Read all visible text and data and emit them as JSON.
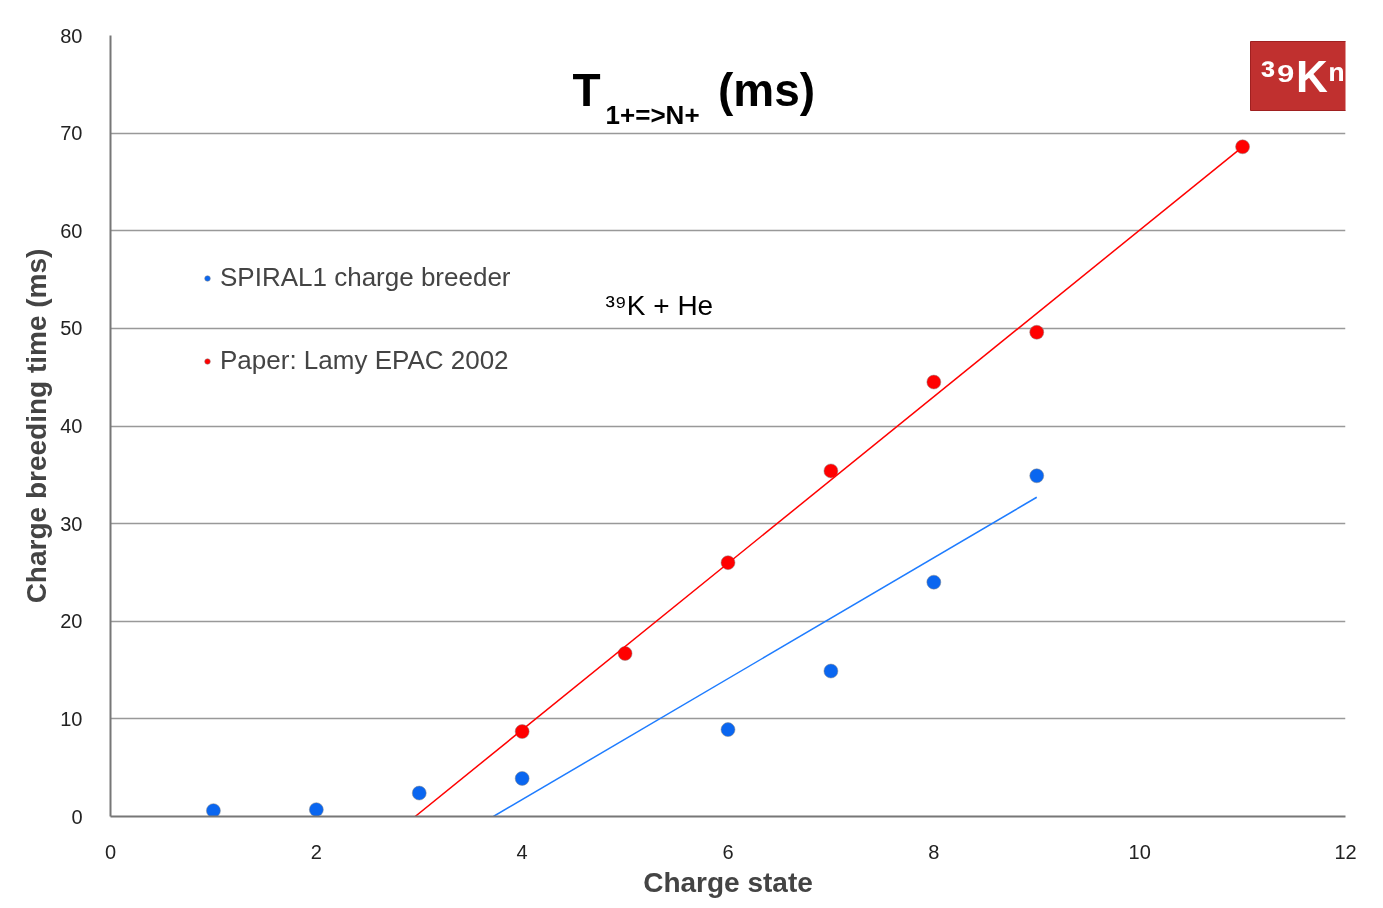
{
  "chart_data": {
    "type": "scatter",
    "title": "T$_{1+=>N+}$ (ms)",
    "xlabel": "Charge state",
    "ylabel": "Charge breeding time (ms)",
    "xlim": [
      0,
      12
    ],
    "xticks": [
      0,
      2,
      4,
      6,
      8,
      10,
      12
    ],
    "ylim": [
      0,
      80
    ],
    "yticks": [
      0,
      10,
      20,
      30,
      40,
      50,
      60,
      70,
      80
    ],
    "grid": "y",
    "legend": "left",
    "annotations": [
      "³⁹K + He",
      "³⁹Kⁿ"
    ],
    "series": [
      {
        "name": "SPIRAL1 charge breeder",
        "color": "#0a66f0",
        "marker": "circle",
        "x": [
          1,
          2,
          3,
          4,
          6,
          7,
          8,
          9
        ],
        "values": [
          0.6,
          0.7,
          2.4,
          3.9,
          8.9,
          14.9,
          24.0,
          34.9
        ]
      },
      {
        "name": "Paper: Lamy EPAC 2002",
        "color": "#ff0000",
        "marker": "circle",
        "x": [
          4,
          5,
          6,
          7,
          8,
          9,
          11
        ],
        "values": [
          8.7,
          16.7,
          26.0,
          35.4,
          44.5,
          49.6,
          68.6
        ]
      },
      {
        "type": "line",
        "color": "#ff0000",
        "x": [
          2.96,
          11
        ],
        "values": [
          0,
          68.6
        ]
      },
      {
        "type": "line",
        "color": "#1e7cff",
        "x": [
          3.72,
          9
        ],
        "values": [
          0,
          32.7
        ]
      }
    ]
  }
}
